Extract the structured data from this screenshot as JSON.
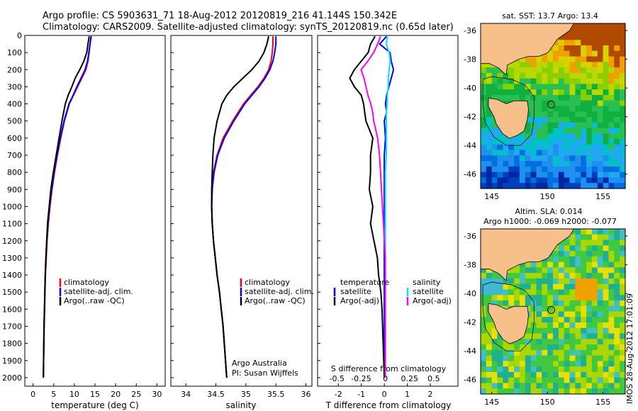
{
  "header": {
    "line1": "Argo profile: CS 5903631_71 18-Aug-2012 20120819_216 41.144S 150.342E",
    "line2": "Climatology: CARS2009. Satellite-adjusted climatology: synTS_20120819.nc (0.65d later)"
  },
  "colors": {
    "climatology": "#ff0000",
    "satellite": "#0000ff",
    "argo": "#000000",
    "argo_adj_salinity": "#ff00ff",
    "satellite_salinity": "#00e5ff",
    "land": "#f7c08a"
  },
  "footer_credit": "IMOS 28-Aug-2012 17:01:09",
  "chart_data": [
    {
      "type": "line",
      "panel": "temperature",
      "xlabel": "temperature (deg C)",
      "ylabel": "",
      "xlim": [
        -2,
        32
      ],
      "ylim": [
        2050,
        0
      ],
      "xticks": [
        0,
        5,
        10,
        15,
        20,
        25,
        30
      ],
      "yticks": [
        0,
        100,
        200,
        300,
        400,
        500,
        600,
        700,
        800,
        900,
        1000,
        1100,
        1200,
        1300,
        1400,
        1500,
        1600,
        1700,
        1800,
        1900,
        2000
      ],
      "legend": [
        "climatology",
        "satellite-adj. clim.",
        "Argo(..raw -QC)"
      ],
      "depth": [
        5,
        50,
        100,
        150,
        200,
        250,
        300,
        350,
        400,
        500,
        600,
        700,
        800,
        900,
        1000,
        1100,
        1200,
        1300,
        1400,
        1500,
        1600,
        1700,
        1800,
        1900,
        2000
      ],
      "series": [
        {
          "name": "climatology",
          "values": [
            14.0,
            13.8,
            13.6,
            13.3,
            12.8,
            11.8,
            10.8,
            9.8,
            8.8,
            7.6,
            6.7,
            5.9,
            5.2,
            4.6,
            4.1,
            3.7,
            3.4,
            3.2,
            3.0,
            2.9,
            2.8,
            2.7,
            2.6,
            2.55,
            2.5
          ]
        },
        {
          "name": "satellite-adj. clim.",
          "values": [
            14.1,
            13.8,
            13.5,
            13.2,
            12.6,
            11.6,
            10.6,
            9.7,
            8.7,
            7.5,
            6.6,
            5.8,
            5.1,
            4.5,
            4.0,
            3.6,
            3.3,
            3.1,
            2.95,
            2.85,
            2.75,
            2.65,
            2.6,
            2.55,
            2.5
          ]
        },
        {
          "name": "Argo(..raw -QC)",
          "values": [
            13.6,
            13.3,
            13.0,
            12.3,
            11.3,
            10.2,
            9.4,
            8.5,
            7.8,
            7.0,
            6.3,
            5.6,
            4.9,
            4.3,
            3.9,
            3.5,
            3.3,
            3.1,
            2.95,
            2.85,
            2.75,
            2.65,
            2.6,
            2.55,
            2.5
          ]
        }
      ]
    },
    {
      "type": "line",
      "panel": "salinity",
      "xlabel": "salinity",
      "ylabel": "",
      "xlim": [
        33.75,
        36.1
      ],
      "ylim": [
        2050,
        0
      ],
      "xticks": [
        34,
        34.5,
        35,
        35.5,
        36
      ],
      "xticklabels": [
        "34",
        "34.5",
        "35",
        "35.5",
        "36"
      ],
      "legend": [
        "climatology",
        "satellite-adj. clim.",
        "Argo(..raw -QC)"
      ],
      "annotations": [
        "Argo Australia",
        "PI: Susan Wijffels"
      ],
      "depth": [
        5,
        50,
        100,
        150,
        200,
        250,
        300,
        350,
        400,
        500,
        600,
        700,
        800,
        900,
        1000,
        1100,
        1200,
        1300,
        1400,
        1500,
        1600,
        1700,
        1800,
        1900,
        2000
      ],
      "series": [
        {
          "name": "climatology",
          "values": [
            35.45,
            35.45,
            35.44,
            35.42,
            35.38,
            35.3,
            35.2,
            35.08,
            34.96,
            34.78,
            34.62,
            34.52,
            34.46,
            34.44,
            34.43,
            34.44,
            34.46,
            34.49,
            34.52,
            34.56,
            34.59,
            34.62,
            34.64,
            34.66,
            34.68
          ]
        },
        {
          "name": "satellite-adj. clim.",
          "values": [
            35.5,
            35.5,
            35.48,
            35.45,
            35.4,
            35.32,
            35.22,
            35.1,
            34.98,
            34.8,
            34.64,
            34.53,
            34.47,
            34.44,
            34.43,
            34.44,
            34.46,
            34.49,
            34.52,
            34.56,
            34.59,
            34.62,
            34.64,
            34.66,
            34.68
          ]
        },
        {
          "name": "Argo(..raw -QC)",
          "values": [
            35.38,
            35.35,
            35.3,
            35.22,
            35.1,
            34.95,
            34.8,
            34.68,
            34.6,
            34.52,
            34.47,
            34.45,
            34.44,
            34.43,
            34.43,
            34.44,
            34.46,
            34.49,
            34.52,
            34.56,
            34.59,
            34.62,
            34.64,
            34.66,
            34.68
          ]
        }
      ]
    },
    {
      "type": "line",
      "panel": "difference",
      "xlabel": "T difference from climatology",
      "ylabel": "",
      "xlabel_top": "S difference from climatology",
      "xlim": [
        -2.9,
        3.2
      ],
      "ylim": [
        2050,
        0
      ],
      "xticks": [
        -2,
        -1,
        0,
        1,
        2
      ],
      "xticks_s": [
        -0.5,
        -0.25,
        0,
        0.25,
        0.5
      ],
      "xticklabels_s": [
        "-0.5",
        "-0.25",
        "0",
        "0.25",
        "0.5"
      ],
      "legend_temperature": [
        "temperature",
        "satellite",
        "Argo(-adj)"
      ],
      "legend_salinity": [
        "salinity",
        "satellite",
        "Argo(-adj)"
      ],
      "depth": [
        5,
        50,
        100,
        150,
        200,
        250,
        300,
        350,
        400,
        450,
        500,
        600,
        700,
        800,
        900,
        1000,
        1100,
        1200,
        1300,
        1400,
        1500,
        1600,
        1800,
        2000
      ],
      "series": [
        {
          "name": "T satellite",
          "values": [
            0.1,
            -0.2,
            0.25,
            0.3,
            0.4,
            0.3,
            0.2,
            0.1,
            0.05,
            0.1,
            0.0,
            0.05,
            0.0,
            0.0,
            0.0,
            0.0,
            0.0,
            0.0,
            0.0,
            0.0,
            0.0,
            0.0,
            0.0,
            0.0
          ]
        },
        {
          "name": "T Argo(-adj)",
          "values": [
            -0.4,
            -0.6,
            -0.7,
            -1.0,
            -1.3,
            -1.5,
            -1.3,
            -1.0,
            -0.9,
            -0.85,
            -0.8,
            -0.5,
            -0.6,
            -0.6,
            -0.65,
            -0.5,
            -0.6,
            -0.45,
            -0.3,
            -0.25,
            -0.15,
            -0.1,
            -0.05,
            0.0
          ]
        },
        {
          "name": "S satellite",
          "values": [
            0.02,
            0.01,
            0.04,
            0.05,
            0.04,
            0.03,
            0.03,
            0.02,
            0.02,
            0.01,
            0.01,
            0.01,
            0.01,
            0.0,
            0.0,
            0.0,
            0.0,
            0.0,
            0.0,
            0.0,
            0.0,
            0.0,
            0.0,
            0.0
          ]
        },
        {
          "name": "S Argo(-adj)",
          "values": [
            -0.05,
            -0.08,
            -0.12,
            -0.18,
            -0.25,
            -0.22,
            -0.2,
            -0.18,
            -0.15,
            -0.13,
            -0.12,
            -0.08,
            -0.06,
            -0.05,
            -0.04,
            -0.03,
            -0.02,
            -0.01,
            0.0,
            0.0,
            0.0,
            0.0,
            0.0,
            0.0
          ]
        }
      ]
    },
    {
      "type": "heatmap",
      "panel": "sst-map",
      "title": "sat. SST: 13.7  Argo: 13.4",
      "xlim": [
        144,
        157
      ],
      "ylim": [
        -47,
        -35.5
      ],
      "xticks": [
        145,
        150,
        155
      ],
      "yticks": [
        -36,
        -38,
        -40,
        -42,
        -44,
        -46
      ],
      "marker": {
        "lon": 150.342,
        "lat": -41.144
      }
    },
    {
      "type": "heatmap",
      "panel": "sla-map",
      "title": "Altim. SLA: 0.014",
      "subtitle": "Argo h1000: -0.069 h2000: -0.077",
      "xlim": [
        144,
        157
      ],
      "ylim": [
        -47,
        -35.5
      ],
      "xticks": [
        145,
        150,
        155
      ],
      "yticks": [
        -36,
        -38,
        -40,
        -42,
        -44,
        -46
      ],
      "marker": {
        "lon": 150.342,
        "lat": -41.144
      }
    }
  ]
}
